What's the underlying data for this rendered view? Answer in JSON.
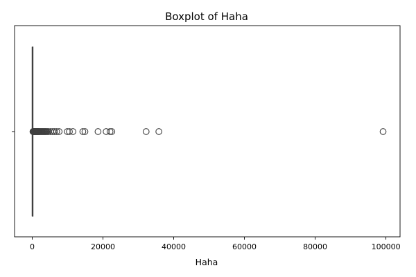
{
  "chart_data": {
    "type": "boxplot",
    "title": "Boxplot of Haha",
    "xlabel": "Haha",
    "ylabel": "",
    "orientation": "horizontal",
    "xlim": [
      -5000,
      104000
    ],
    "xticks": [
      0,
      20000,
      40000,
      60000,
      80000,
      100000
    ],
    "xtick_labels": [
      "0",
      "20000",
      "40000",
      "60000",
      "80000",
      "100000"
    ],
    "y_tick_labels": [
      ""
    ],
    "box": {
      "q1": 0,
      "median": 5,
      "q3": 60,
      "whisker_low": 0,
      "whisker_high": 150
    },
    "outliers": [
      200,
      300,
      400,
      500,
      600,
      700,
      800,
      900,
      1000,
      1100,
      1200,
      1300,
      1400,
      1500,
      1600,
      1700,
      1800,
      1900,
      2000,
      2200,
      2400,
      2600,
      2800,
      3000,
      3200,
      3400,
      3600,
      3800,
      4000,
      4300,
      4600,
      5200,
      5800,
      6300,
      6900,
      7600,
      9900,
      10500,
      11500,
      14300,
      14900,
      18600,
      20900,
      22000,
      22500,
      32200,
      35800,
      99200
    ],
    "colors": {
      "box": "#1f77b4",
      "line": "#3f3f3f"
    },
    "grid": false
  }
}
